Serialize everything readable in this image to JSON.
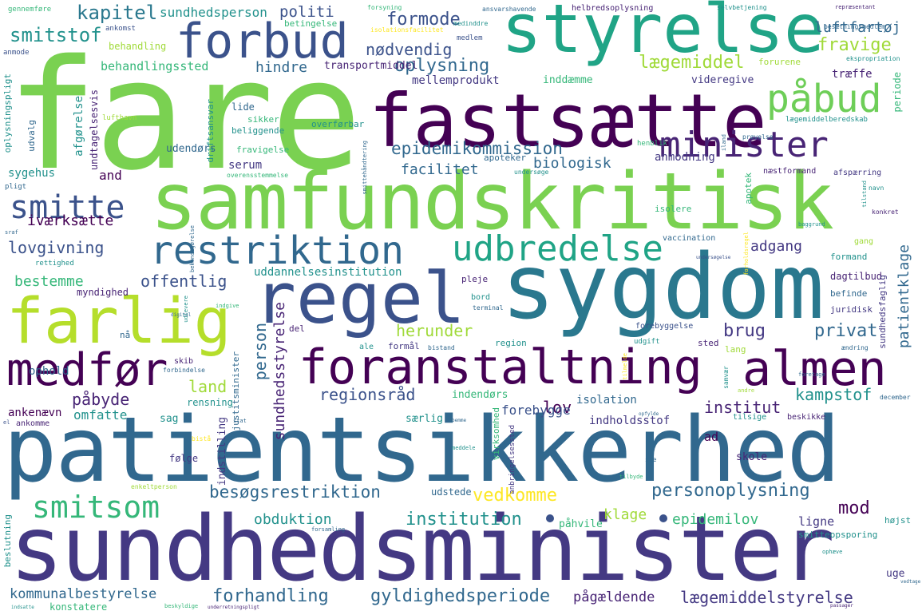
{
  "palette": {
    "background": "#ffffff",
    "colormap": "viridis",
    "dark_purple": "#440154",
    "indigo": "#3b528b",
    "blue": "#31688e",
    "teal": "#21918c",
    "green": "#35b779",
    "light_green": "#6ece58",
    "yellow_green": "#a0da39",
    "yellow": "#fde725"
  },
  "words": {
    "fare": "fare",
    "styrelse": "styrelse",
    "fastsaette": "fastsætte",
    "forbud": "forbud",
    "samfundskritisk": "samfundskritisk",
    "sygdom": "sygdom",
    "regel": "regel",
    "farlig": "farlig",
    "patientsikkerhed": "patientsikkerhed",
    "sundhedsminister": "sundhedsminister",
    "foranstaltning": "foranstaltning",
    "almen": "almen",
    "medfor": "medfør",
    "restriktion": "restriktion",
    "udbredelse": "udbredelse",
    "pabud": "påbud",
    "minister": "minister",
    "smitte": "smitte",
    "smitsom": "smitsom",
    "epidemikommission": "epidemikommission",
    "kapitel": "kapitel",
    "smitstof": "smitstof",
    "sundhedsperson": "sundhedsperson",
    "politi": "politi",
    "formode": "formode",
    "nodvendig": "nødvendig",
    "oplysning": "oplysning",
    "fravige": "fravige",
    "luftfartoj": "luftfartøj",
    "laegemiddel": "lægemiddel",
    "hindre": "hindre",
    "transportmiddel": "transportmiddel",
    "behandlingssted": "behandlingssted",
    "behandling": "behandling",
    "betingelse": "betingelse",
    "mellemprodukt": "mellemprodukt",
    "inddaemme": "inddæmme",
    "videregive": "videregive",
    "traeffe": "træffe",
    "forurene": "forurene",
    "lovgivning": "lovgivning",
    "ivaerksaette": "iværksætte",
    "adgang": "adgang",
    "offentlig": "offentlig",
    "bestemme": "bestemme",
    "uddannelsesinstitution": "uddannelsesinstitution",
    "herunder": "herunder",
    "privat": "privat",
    "brug": "brug",
    "patientklage": "patientklage",
    "person": "person",
    "regionsraad": "regionsråd",
    "land": "land",
    "pabyde": "påbyde",
    "kampstof": "kampstof",
    "institut": "institut",
    "lov": "lov",
    "forebygge": "forebygge",
    "isolation": "isolation",
    "indholdsstof": "indholdsstof",
    "indendors": "indendørs",
    "omfatte": "omfatte",
    "saerlig": "særlig",
    "sag": "sag",
    "ankenaevn": "ankenævn",
    "ophold": "ophold",
    "rensning": "rensning",
    "besogsrestriktion": "besøgsrestriktion",
    "personoplysning": "personoplysning",
    "vedkomme": "vedkomme",
    "mod": "mod",
    "institution": "institution",
    "obduktion": "obduktion",
    "klage": "klage",
    "epidemilov": "epidemilov",
    "ligne": "ligne",
    "smitteopsporing": "smitteopsporing",
    "pahvile": "påhvile",
    "udstede": "udstede",
    "forhandling": "forhandling",
    "gyldighedsperiode": "gyldighedsperiode",
    "paagaeldende": "pågældende",
    "laegemiddelstyrelse": "lægemiddelstyrelse",
    "kommunalbestyrelse": "kommunalbestyrelse",
    "konstatere": "konstatere",
    "skole": "skole",
    "ad": "ad",
    "uge": "uge",
    "hojst": "højst",
    "folge": "følge",
    "facilitet": "facilitet",
    "biologisk": "biologisk",
    "serum": "serum",
    "anmodning": "anmodning",
    "udendors": "udendørs",
    "sygehus": "sygehus",
    "and": "and",
    "apoteker": "apoteker",
    "lide": "lide",
    "sikker": "sikker",
    "beliggende": "beliggende",
    "overforbar": "overførbar",
    "fravigelse": "fravigelse",
    "gennemfore": "gennemføre",
    "ankomst": "ankomst",
    "anmode": "anmode",
    "medlem": "medlem",
    "helbredsoplysning": "helbredsoplysning",
    "ansvarshavende": "ansvarshavende",
    "selvbetjening": "selvbetjening",
    "ekspropriation": "ekspropriation",
    "besaetningsmedlem": "besætningsmedlem",
    "lufthavn": "lufthavn",
    "naestformand": "næstformand",
    "afsparring": "afspærring",
    "isolere": "isolere",
    "vaccination": "vaccination",
    "formand": "formand",
    "dagtilbud": "dagtilbud",
    "befinde": "befinde",
    "juridisk": "juridisk",
    "myndighed": "myndighed",
    "pleje": "pleje",
    "bord": "bord",
    "del": "del",
    "ale": "ale",
    "formaal": "formål",
    "region": "region",
    "sted": "sted",
    "lang": "lang",
    "skib": "skib",
    "forbindelse": "forbindelse",
    "ankomme": "ankomme",
    "tilsige": "tilsige",
    "beskikke": "beskikke",
    "na": "nå",
    "gang": "gang",
    "henblik": "henblik",
    "konkret": "konkret",
    "udvalg": "udvalg",
    "periode": "periode",
    "laegemiddelberedskab": "lægemiddelberedskab",
    "afgorelse": "afgørelse",
    "oplysningspligt": "oplysningspligt",
    "driftsansvar": "driftsansvar",
    "undtagelsesvis": "undtagelsesvis",
    "sundhedsstyrelse": "sundhedsstyrelse",
    "indstilling": "indstilling",
    "justitsminister": "justitsminister",
    "virksomhed": "virksomhed",
    "apotek": "apotek",
    "sundhedsfaglig": "sundhedsfaglig",
    "beslutning": "beslutning",
    "rettighed": "rettighed",
    "pligt": "pligt",
    "udgift": "udgift",
    "forebyggelse": "forebyggelse",
    "undersoge": "undersøge",
    "overensstemmelse": "overensstemmelse",
    "provelse": "prøvelse",
    "betaling": "betaling",
    "terminal": "terminal",
    "bista": "bistå",
    "bistand": "bistand",
    "andring": "ændring",
    "december": "december",
    "forsyning": "forsyning",
    "isolationsfacilitet": "isolationsfacilitet",
    "ophave": "ophæve",
    "indgive": "indgive",
    "digital": "digital",
    "enkeltperson": "enkeltperson",
    "forsamling": "forsamling",
    "tilbyde": "tilbyde",
    "meddele": "meddele",
    "opfylde": "opfylde",
    "foretage": "foretage",
    "andre": "andre",
    "smittehandtering": "smittehåndtering",
    "iland": "iland",
    "ske": "ske",
    "medinddre": "medinddre",
    "anbringelsessted": "anbringelsessted",
    "samvaer": "samvær",
    "stat": "stat",
    "baggrund": "baggrund",
    "undersogelse": "undersøgelse",
    "navn": "navn",
    "repraesentant": "repræsentant",
    "passager": "passager",
    "indsatte": "indsatte",
    "beskyldige": "beskyldige",
    "underretningspligt": "underretningspligt",
    "vedtage": "vedtage",
    "bemme": "bemme",
    "tilmelde": "tilmelde",
    "sraf": "sraf",
    "el": "el",
    "forholdsregel": "forholdsregel",
    "bekendtgorelse": "bekendtgørelse",
    "tilstand": "tilstand",
    "udlevere": "udlevere"
  }
}
